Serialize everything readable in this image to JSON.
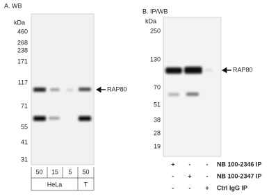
{
  "panel_a": {
    "title": "A. WB",
    "unit": "kDa",
    "markers": [
      "460",
      "268",
      "238",
      "171",
      "117",
      "71",
      "55",
      "41",
      "31"
    ],
    "target": "RAP80",
    "lanes": [
      "50",
      "15",
      "5",
      "50"
    ],
    "groups": [
      "HeLa",
      "T"
    ]
  },
  "panel_b": {
    "title": "B. IP/WB",
    "unit": "kDa",
    "markers": [
      "250",
      "130",
      "70",
      "51",
      "38",
      "28",
      "19"
    ],
    "target": "RAP80",
    "rows": [
      {
        "cells": [
          "+",
          "-",
          "-"
        ],
        "label": "NB 100-2346 IP"
      },
      {
        "cells": [
          "-",
          "+",
          "-"
        ],
        "label": "NB 100-2347 IP"
      },
      {
        "cells": [
          "-",
          "-",
          "+"
        ],
        "label": "Ctrl IgG IP"
      }
    ]
  }
}
